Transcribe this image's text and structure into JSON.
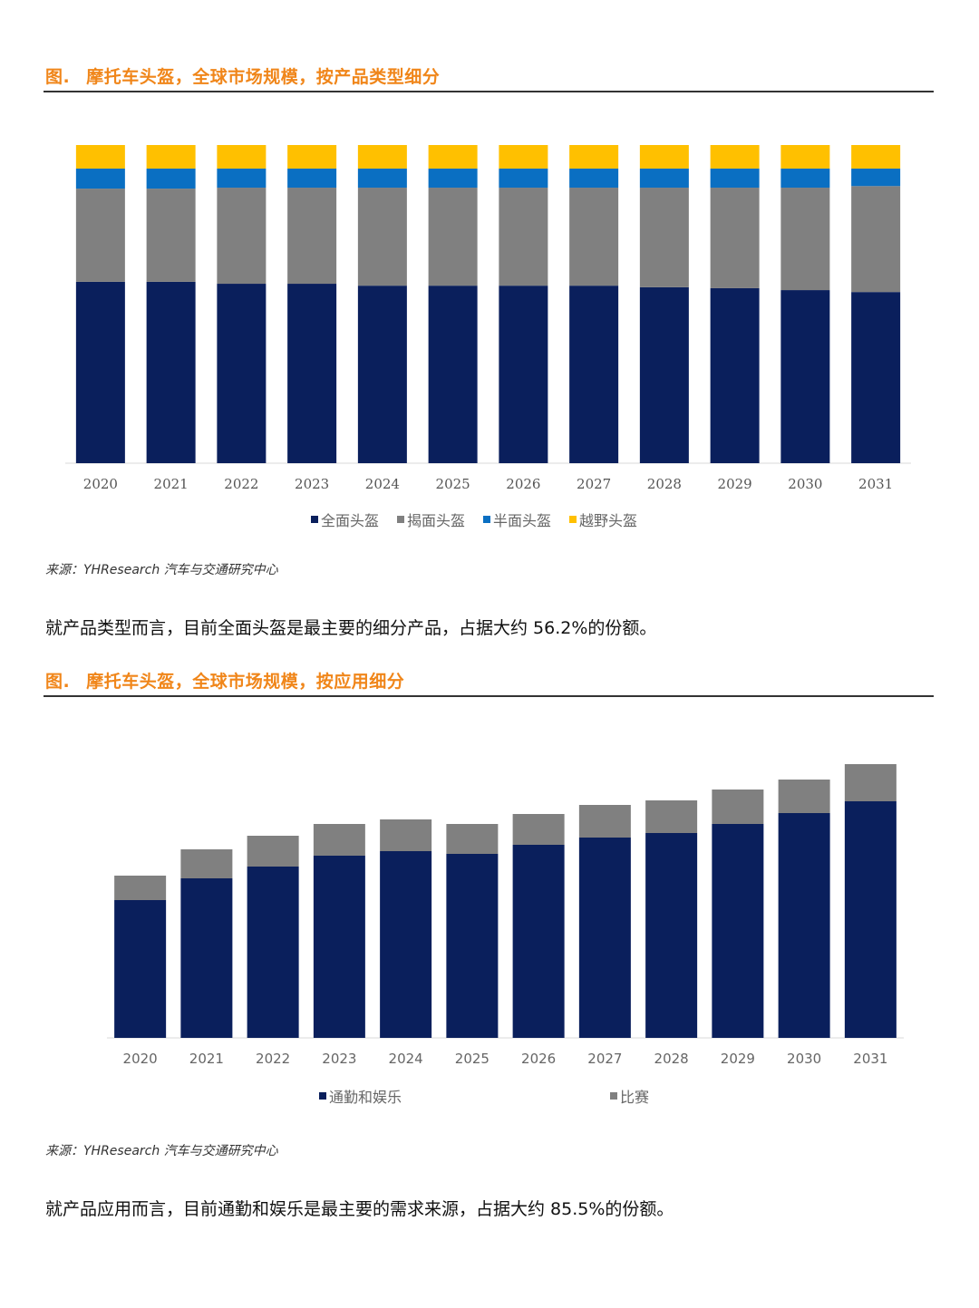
{
  "figure1": {
    "label": "图.",
    "title": "摩托车头盔，全球市场规模，按产品类型细分",
    "source": "来源：YHResearch 汽车与交通研究中心",
    "caption": "就产品类型而言，目前全面头盔是最主要的细分产品，占据大约 56.2%的份额。"
  },
  "figure2": {
    "label": "图.",
    "title": "摩托车头盔，全球市场规模，按应用细分",
    "source": "来源：YHResearch 汽车与交通研究中心",
    "caption": "就产品应用而言，目前通勤和娱乐是最主要的需求来源，占据大约 85.5%的份额。"
  },
  "chart_data": [
    {
      "type": "bar",
      "stacked": "percent",
      "categories": [
        "2020",
        "2021",
        "2022",
        "2023",
        "2024",
        "2025",
        "2026",
        "2027",
        "2028",
        "2029",
        "2030",
        "2031"
      ],
      "ylim": [
        0,
        100
      ],
      "grid": false,
      "legend_position": "bottom",
      "series": [
        {
          "name": "全面头盔",
          "color": "#0a1f5c",
          "values": [
            57.0,
            57.0,
            56.4,
            56.4,
            55.8,
            55.8,
            55.8,
            55.8,
            55.3,
            55.0,
            54.4,
            53.8
          ]
        },
        {
          "name": "揭面头盔",
          "color": "#808080",
          "values": [
            29.3,
            29.3,
            30.2,
            30.2,
            30.8,
            30.8,
            30.8,
            30.8,
            31.3,
            31.6,
            32.2,
            33.3
          ]
        },
        {
          "name": "半面头盔",
          "color": "#0a6fc2",
          "values": [
            6.3,
            6.3,
            6.0,
            6.0,
            6.0,
            6.0,
            6.0,
            6.0,
            6.0,
            6.0,
            6.0,
            5.5
          ]
        },
        {
          "name": "越野头盔",
          "color": "#ffc000",
          "values": [
            7.4,
            7.4,
            7.4,
            7.4,
            7.4,
            7.4,
            7.4,
            7.4,
            7.4,
            7.4,
            7.4,
            7.4
          ]
        }
      ]
    },
    {
      "type": "bar",
      "stacked": "absolute",
      "categories": [
        "2020",
        "2021",
        "2022",
        "2023",
        "2024",
        "2025",
        "2026",
        "2027",
        "2028",
        "2029",
        "2030",
        "2031"
      ],
      "grid": false,
      "legend_position": "bottom",
      "series": [
        {
          "name": "通勤和娱乐",
          "color": "#0a1f5c",
          "values": [
            152,
            176,
            189,
            201,
            206,
            203,
            213,
            221,
            226,
            236,
            248,
            261
          ]
        },
        {
          "name": "比赛",
          "color": "#808080",
          "values": [
            27,
            32,
            34,
            35,
            35,
            33,
            34,
            36,
            36,
            38,
            37,
            41
          ]
        }
      ]
    }
  ]
}
